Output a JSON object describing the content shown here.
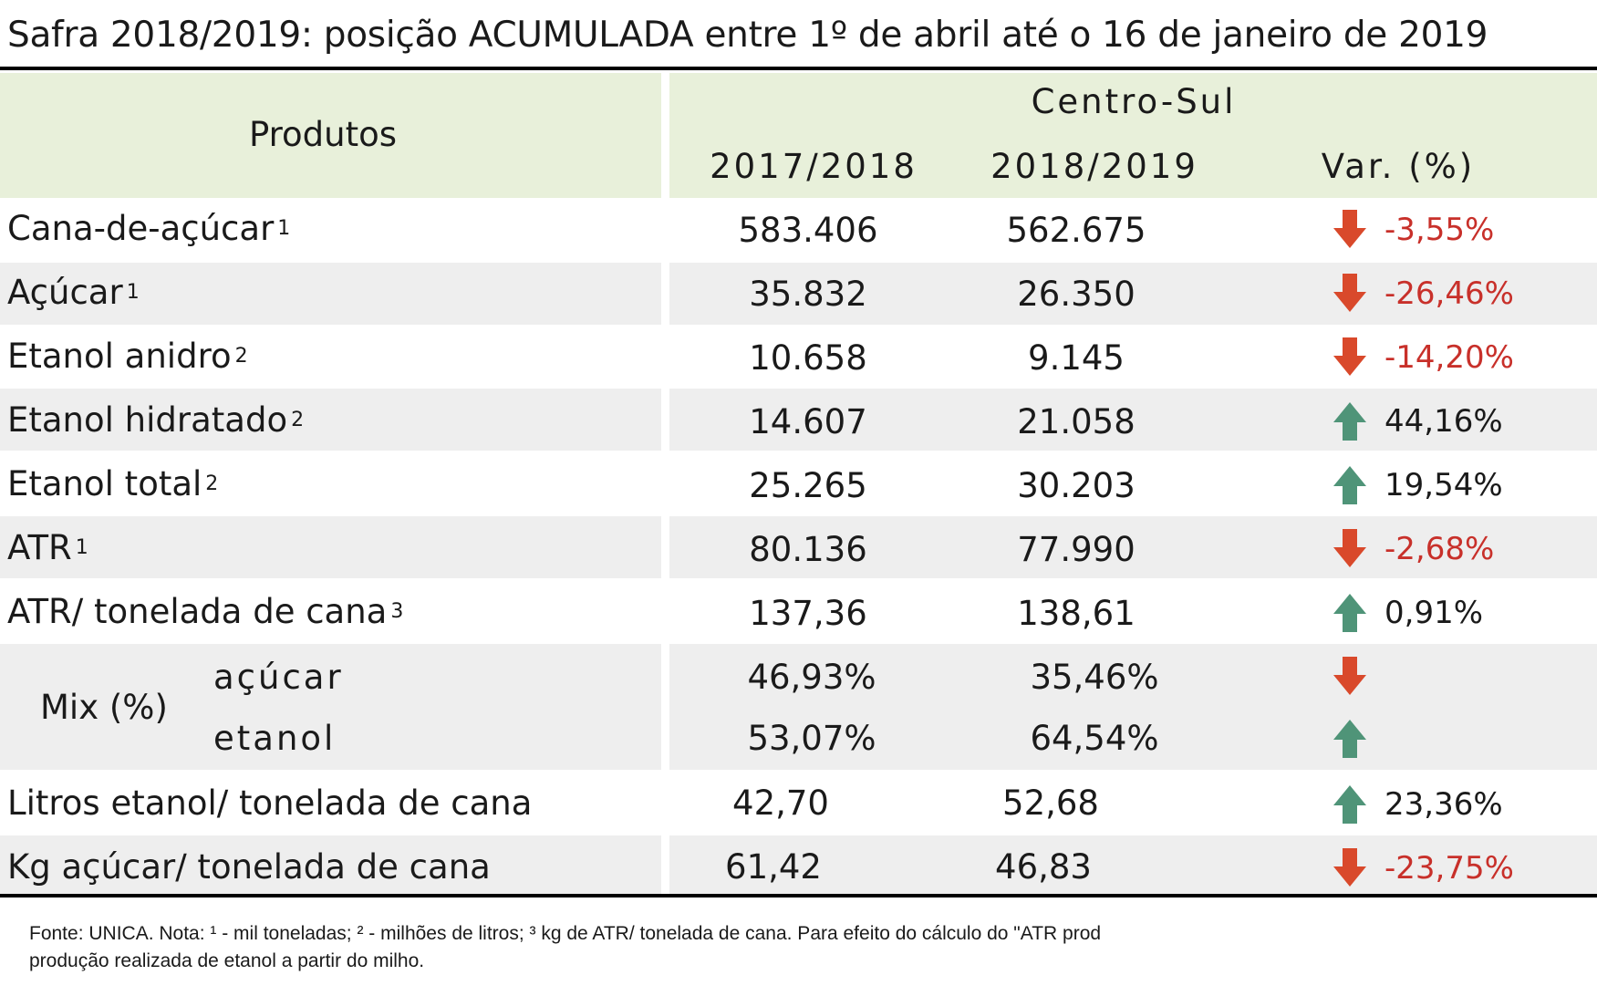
{
  "title": "Safra 2018/2019: posição ACUMULADA entre 1º de abril até o 16 de janeiro de 2019",
  "header": {
    "produtos": "Produtos",
    "region": "Centro-Sul",
    "col1": "2017/2018",
    "col2": "2018/2019",
    "col3": "Var. (%)"
  },
  "rows": [
    {
      "label": "Cana-de-açúcar",
      "note": "1",
      "v1": "583.406",
      "v2": "562.675",
      "var": "-3,55%",
      "dir": "down"
    },
    {
      "label": "Açúcar",
      "note": "1",
      "v1": "35.832",
      "v2": "26.350",
      "var": "-26,46%",
      "dir": "down"
    },
    {
      "label": "Etanol anidro",
      "note": "2",
      "v1": "10.658",
      "v2": "9.145",
      "var": "-14,20%",
      "dir": "down"
    },
    {
      "label": "Etanol hidratado",
      "note": "2",
      "v1": "14.607",
      "v2": "21.058",
      "var": "44,16%",
      "dir": "up"
    },
    {
      "label": "Etanol total",
      "note": "2",
      "v1": "25.265",
      "v2": "30.203",
      "var": "19,54%",
      "dir": "up"
    },
    {
      "label": "ATR",
      "note": "1",
      "v1": "80.136",
      "v2": "77.990",
      "var": "-2,68%",
      "dir": "down"
    },
    {
      "label": "ATR/ tonelada de cana",
      "note": "3",
      "v1": "137,36",
      "v2": "138,61",
      "var": "0,91%",
      "dir": "up"
    }
  ],
  "mix": {
    "label": "Mix (%)",
    "acucar": {
      "label": "açúcar",
      "v1": "46,93%",
      "v2": "35,46%",
      "dir": "down"
    },
    "etanol": {
      "label": "etanol",
      "v1": "53,07%",
      "v2": "64,54%",
      "dir": "up"
    }
  },
  "rows_bottom": [
    {
      "label": "Litros etanol/ tonelada de cana",
      "v1": "42,70",
      "v2": "52,68",
      "var": "23,36%",
      "dir": "up"
    },
    {
      "label": "Kg açúcar/ tonelada de cana",
      "v1": "61,42",
      "v2": "46,83",
      "var": "-23,75%",
      "dir": "down"
    }
  ],
  "footnote": {
    "line1": "Fonte: UNICA. Nota: ¹ - mil toneladas; ² - milhões de litros; ³   kg de ATR/ tonelada de cana. Para efeito do cálculo do \"ATR prod",
    "line2": "produção realizada de etanol a partir do milho."
  },
  "colors": {
    "header_bg": "#e8f0da",
    "band_bg": "#eeeeee",
    "arrow_down": "#d9492b",
    "arrow_up": "#4f9478",
    "negative_text": "#c8302a"
  }
}
